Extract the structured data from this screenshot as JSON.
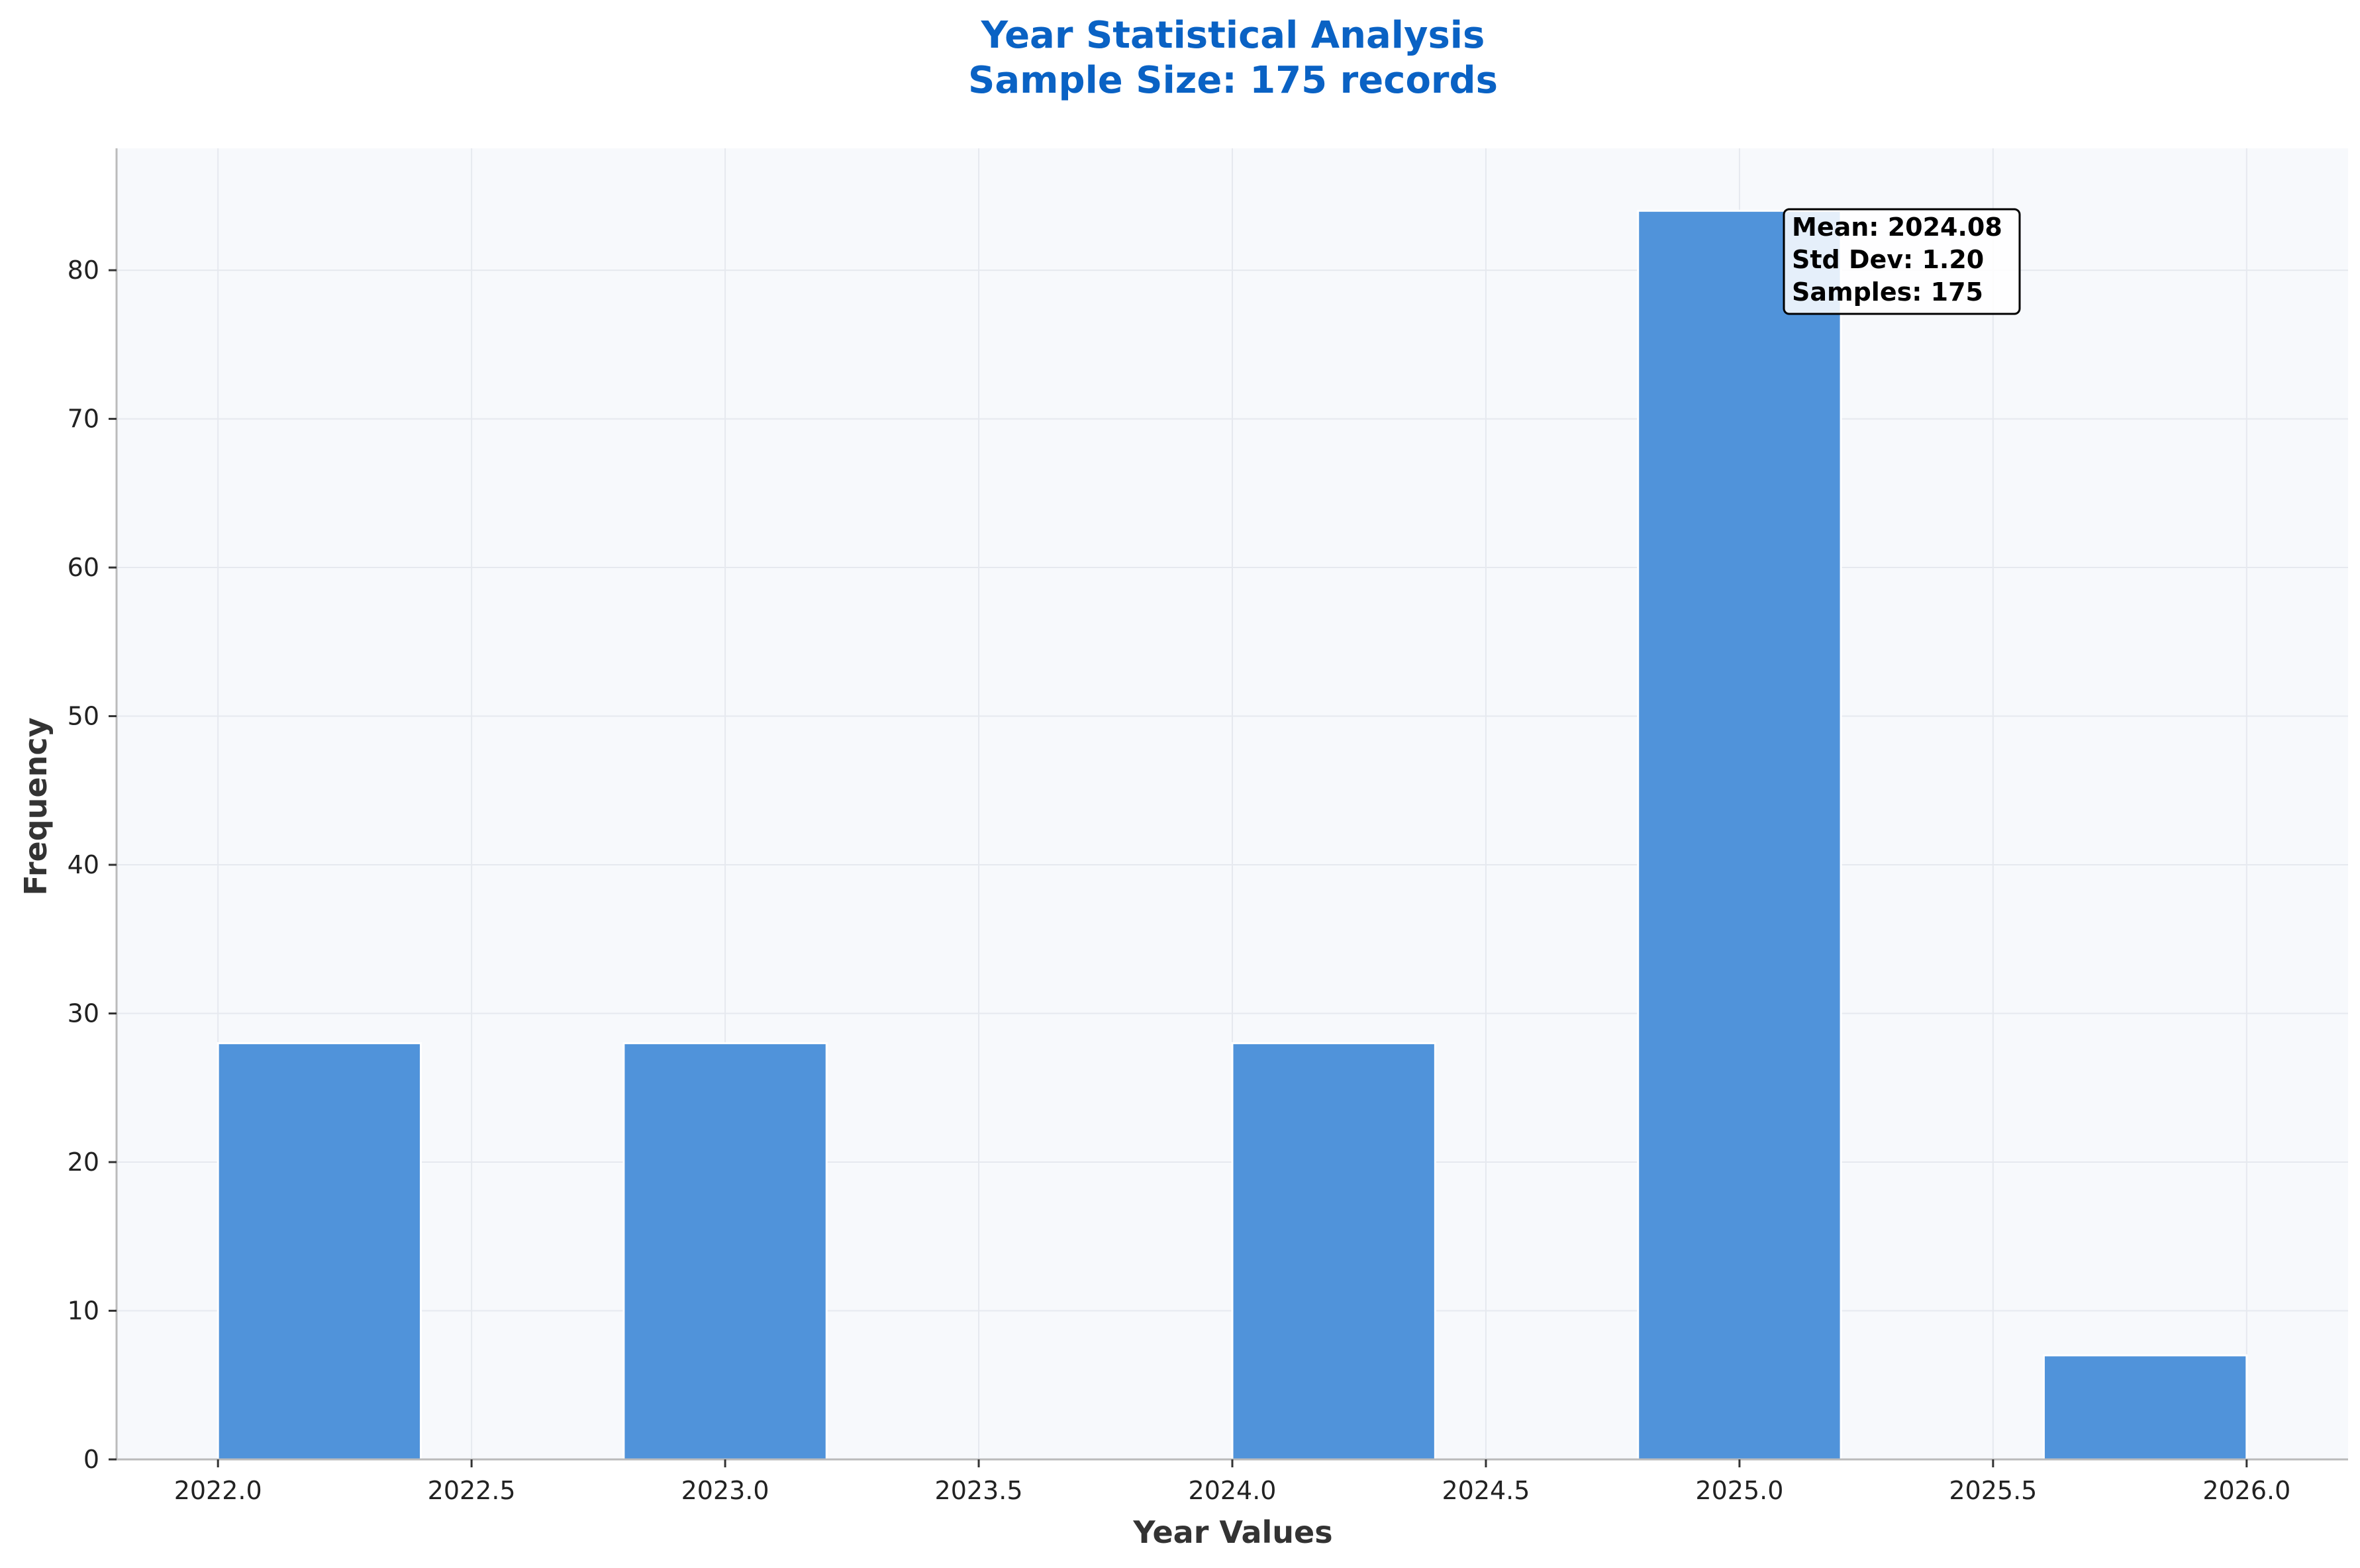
{
  "chart_data": {
    "type": "bar",
    "title": "Year Statistical Analysis",
    "subtitle": "Sample Size: 175 records",
    "xlabel": "Year Values",
    "ylabel": "Frequency",
    "xlim": [
      2021.8,
      2026.2
    ],
    "ylim": [
      0,
      88.2
    ],
    "x_ticks": [
      2022.0,
      2022.5,
      2023.0,
      2023.5,
      2024.0,
      2024.5,
      2025.0,
      2025.5,
      2026.0
    ],
    "x_tick_labels": [
      "2022.0",
      "2022.5",
      "2023.0",
      "2023.5",
      "2024.0",
      "2024.5",
      "2025.0",
      "2025.5",
      "2026.0"
    ],
    "y_ticks": [
      0,
      10,
      20,
      30,
      40,
      50,
      60,
      70,
      80
    ],
    "y_tick_labels": [
      "0",
      "10",
      "20",
      "30",
      "40",
      "50",
      "60",
      "70",
      "80"
    ],
    "bins": [
      {
        "start": 2022.0,
        "end": 2022.4,
        "count": 28
      },
      {
        "start": 2022.4,
        "end": 2022.8,
        "count": 0
      },
      {
        "start": 2022.8,
        "end": 2023.2,
        "count": 28
      },
      {
        "start": 2023.2,
        "end": 2023.6,
        "count": 0
      },
      {
        "start": 2023.6,
        "end": 2024.0,
        "count": 0
      },
      {
        "start": 2024.0,
        "end": 2024.4,
        "count": 28
      },
      {
        "start": 2024.4,
        "end": 2024.8,
        "count": 0
      },
      {
        "start": 2024.8,
        "end": 2025.2,
        "count": 84
      },
      {
        "start": 2025.2,
        "end": 2025.6,
        "count": 0
      },
      {
        "start": 2025.6,
        "end": 2026.0,
        "count": 7
      }
    ],
    "grid": true,
    "annotation": [
      "Mean: 2024.08",
      "Std Dev: 1.20",
      "Samples: 175"
    ],
    "colors": {
      "title": "#0a62c4",
      "bar": "#4a90d9",
      "plot_background": "#f7f9fc",
      "axis": "#bbbbbb",
      "grid": "#e6e9ef",
      "label": "#333333",
      "tick_label": "#222222"
    }
  }
}
